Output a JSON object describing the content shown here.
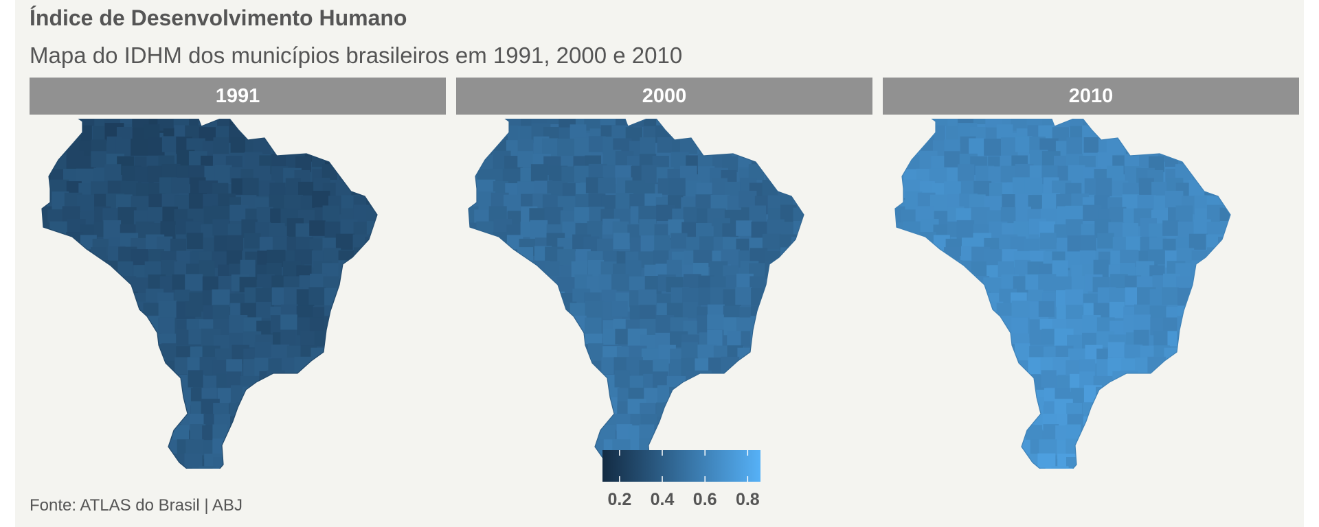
{
  "title": "Índice de Desenvolvimento Humano",
  "subtitle": "Mapa do IDHM dos municípios brasileiros em 1991, 2000 e 2010",
  "source": "Fonte: ATLAS do Brasil | ABJ",
  "colors": {
    "background": "#f4f4f0",
    "strip": "#919191",
    "low": "#132b43",
    "high": "#56b1f7"
  },
  "chart_data": {
    "type": "choropleth",
    "facets": [
      {
        "label": "1991",
        "mean_value": 0.33
      },
      {
        "label": "2000",
        "mean_value": 0.48
      },
      {
        "label": "2010",
        "mean_value": 0.65
      }
    ],
    "legend": {
      "range": [
        0.12,
        0.86
      ],
      "ticks": [
        0.2,
        0.4,
        0.6,
        0.8
      ],
      "tick_labels": [
        "0.2",
        "0.4",
        "0.6",
        "0.8"
      ],
      "placement": "bottom-center"
    }
  }
}
